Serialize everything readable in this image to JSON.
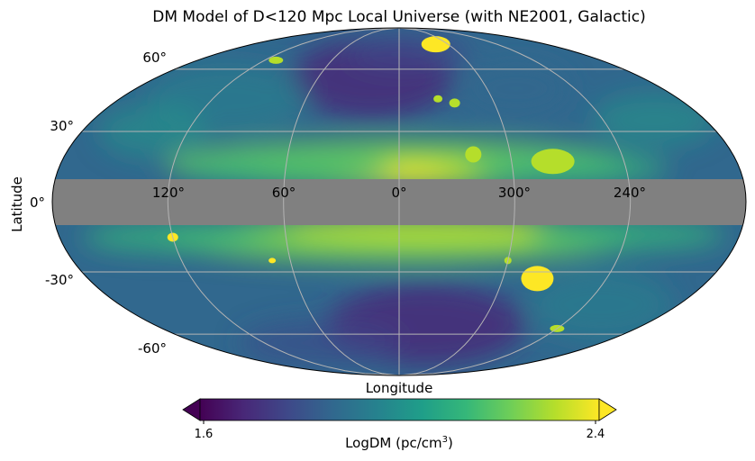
{
  "chart_data": {
    "type": "heatmap",
    "projection": "mollweide",
    "title": "DM Model of D<120 Mpc Local Universe (with NE2001, Galactic)",
    "xlabel": "Longitude",
    "ylabel": "Latitude",
    "longitude_ticks": [
      "120°",
      "60°",
      "0°",
      "300°",
      "240°"
    ],
    "latitude_ticks": [
      "60°",
      "30°",
      "0°",
      "-30°",
      "-60°"
    ],
    "grid": true,
    "masked_band_deg": [
      -10,
      10
    ],
    "masked_color": "#808080",
    "colormap": "viridis",
    "colorbar": {
      "label_main": "LogDM (pc/cm",
      "label_sup": "3",
      "label_end": ")",
      "min_label": "1.6",
      "max_label": "2.4",
      "vmin": 1.6,
      "vmax": 2.4,
      "extend": "both",
      "stops": [
        "#440154",
        "#482878",
        "#3e4989",
        "#31688e",
        "#26828e",
        "#1f9e89",
        "#35b779",
        "#6ece58",
        "#b5de2b",
        "#fde725"
      ]
    }
  }
}
